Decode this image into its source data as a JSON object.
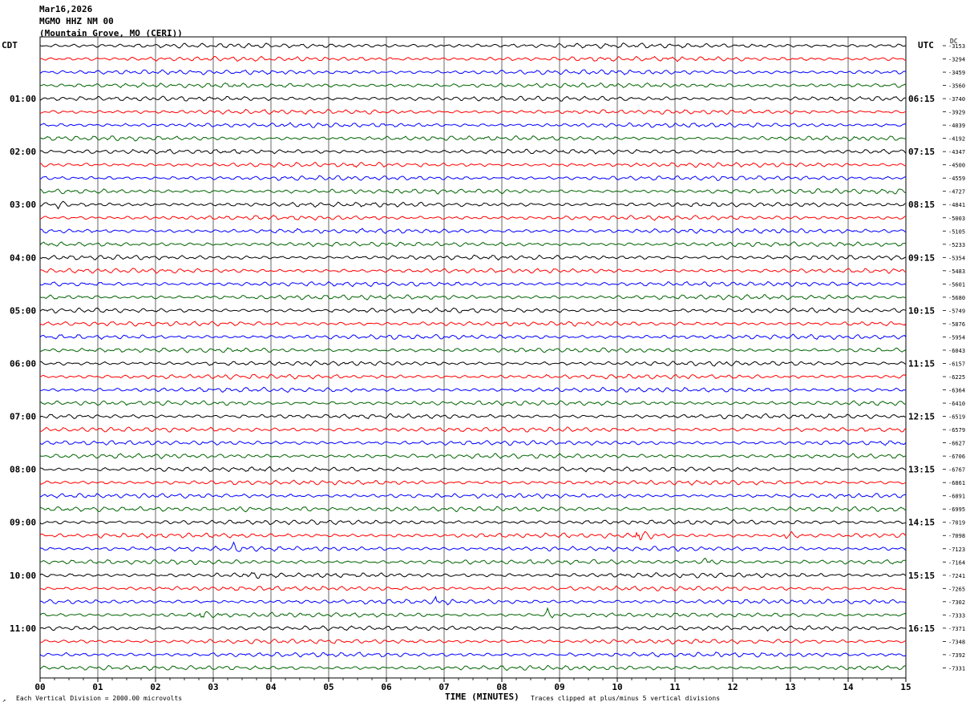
{
  "header": {
    "date": "Mar16,2026",
    "station": "MGMO HHZ NM 00",
    "location": "(Mountain Grove, MO (CERI))"
  },
  "left_axis_title": "CDT",
  "right_axis_title": "UTC",
  "dc_label": "DC",
  "corner_mark": "↗",
  "footer": {
    "scale": "Each Vertical Division = 2000.00 microvolts",
    "clip": "Traces clipped at plus/minus 5 vertical divisions"
  },
  "chart_data": {
    "type": "line",
    "title": "",
    "xlabel": "TIME (MINUTES)",
    "ylabel": "",
    "xlim": [
      0,
      15
    ],
    "x_ticks": [
      "00",
      "01",
      "02",
      "03",
      "04",
      "05",
      "06",
      "07",
      "08",
      "09",
      "10",
      "11",
      "12",
      "13",
      "14",
      "15"
    ],
    "grid": true,
    "trace_colors": [
      "#000000",
      "#ff0000",
      "#0000ff",
      "#006400"
    ],
    "left_time_labels": [
      "01:00",
      "02:00",
      "03:00",
      "04:00",
      "05:00",
      "06:00",
      "07:00",
      "08:00",
      "09:00",
      "10:00",
      "11:00"
    ],
    "right_time_labels": [
      "06:15",
      "07:15",
      "08:15",
      "09:15",
      "10:15",
      "11:15",
      "12:15",
      "13:15",
      "14:15",
      "15:15",
      "16:15"
    ],
    "dc_offsets": [
      "-3153",
      "-3294",
      "-3459",
      "-3560",
      "-3740",
      "-3929",
      "-4039",
      "-4192",
      "-4347",
      "-4500",
      "-4559",
      "-4727",
      "-4841",
      "-5003",
      "-5105",
      "-5233",
      "-5354",
      "-5483",
      "-5601",
      "-5680",
      "-5749",
      "-5876",
      "-5954",
      "-6043",
      "-6157",
      "-6225",
      "-6364",
      "-6410",
      "-6519",
      "-6579",
      "-6627",
      "-6706",
      "-6767",
      "-6861",
      "-6891",
      "-6995",
      "-7019",
      "-7098",
      "-7123",
      "-7164",
      "-7241",
      "-7265",
      "-7302",
      "-7333",
      "-7371",
      "-7348",
      "-7392",
      "-7331"
    ],
    "events": [
      {
        "row": 35,
        "minute": 3.4,
        "size": 1.3
      },
      {
        "row": 35,
        "minute": 4.5,
        "size": 0.9
      },
      {
        "row": 37,
        "minute": 10.35,
        "size": 3.0
      },
      {
        "row": 37,
        "minute": 12.9,
        "size": 2.3
      },
      {
        "row": 38,
        "minute": 3.35,
        "size": 1.2
      },
      {
        "row": 39,
        "minute": 11.5,
        "size": 1.6
      },
      {
        "row": 40,
        "minute": 3.55,
        "size": 1.3
      },
      {
        "row": 42,
        "minute": 6.85,
        "size": 1.5
      },
      {
        "row": 43,
        "minute": 2.8,
        "size": 1.6
      },
      {
        "row": 43,
        "minute": 8.8,
        "size": 1.5
      },
      {
        "row": 11,
        "minute": 14.7,
        "size": 1.0
      },
      {
        "row": 12,
        "minute": 0.3,
        "size": 1.0
      }
    ]
  }
}
